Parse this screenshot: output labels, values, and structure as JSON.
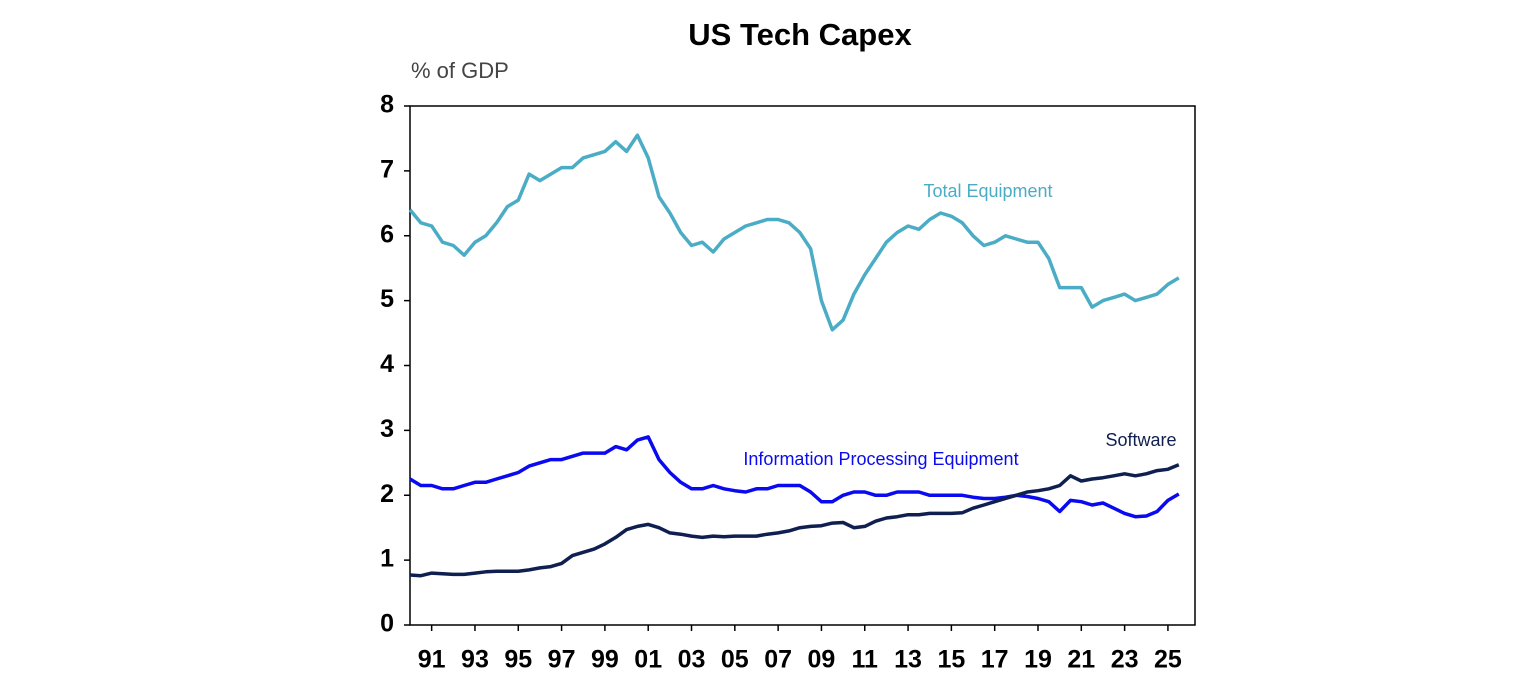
{
  "chart_data": {
    "type": "line",
    "title": "US Tech Capex",
    "y_label": "% of GDP",
    "x": [
      1990,
      1990.5,
      1991,
      1991.5,
      1992,
      1992.5,
      1993,
      1993.5,
      1994,
      1994.5,
      1995,
      1995.5,
      1996,
      1996.5,
      1997,
      1997.5,
      1998,
      1998.5,
      1999,
      1999.5,
      2000,
      2000.5,
      2001,
      2001.5,
      2002,
      2002.5,
      2003,
      2003.5,
      2004,
      2004.5,
      2005,
      2005.5,
      2006,
      2006.5,
      2007,
      2007.5,
      2008,
      2008.5,
      2009,
      2009.5,
      2010,
      2010.5,
      2011,
      2011.5,
      2012,
      2012.5,
      2013,
      2013.5,
      2014,
      2014.5,
      2015,
      2015.5,
      2016,
      2016.5,
      2017,
      2017.5,
      2018,
      2018.5,
      2019,
      2019.5,
      2020,
      2020.5,
      2021,
      2021.5,
      2022,
      2022.5,
      2023,
      2023.5,
      2024,
      2024.5,
      2025,
      2025.5
    ],
    "series": [
      {
        "name": "Total Equipment",
        "color": "#4bacc6",
        "values": [
          6.4,
          6.2,
          6.15,
          5.9,
          5.85,
          5.7,
          5.9,
          6.0,
          6.2,
          6.45,
          6.55,
          6.95,
          6.85,
          6.95,
          7.05,
          7.05,
          7.2,
          7.25,
          7.3,
          7.45,
          7.3,
          7.55,
          7.2,
          6.6,
          6.35,
          6.05,
          5.85,
          5.9,
          5.75,
          5.95,
          6.05,
          6.15,
          6.2,
          6.25,
          6.25,
          6.2,
          6.05,
          5.8,
          5.0,
          4.55,
          4.7,
          5.1,
          5.4,
          5.65,
          5.9,
          6.05,
          6.15,
          6.1,
          6.25,
          6.35,
          6.3,
          6.2,
          6.0,
          5.85,
          5.9,
          6.0,
          5.95,
          5.9,
          5.9,
          5.65,
          5.2,
          5.2,
          5.2,
          4.9,
          5.0,
          5.05,
          5.1,
          5.0,
          5.05,
          5.1,
          5.25,
          5.35
        ]
      },
      {
        "name": "Information Processing Equipment",
        "color": "#0a0af0",
        "values": [
          2.25,
          2.15,
          2.15,
          2.1,
          2.1,
          2.15,
          2.2,
          2.2,
          2.25,
          2.3,
          2.35,
          2.45,
          2.5,
          2.55,
          2.55,
          2.6,
          2.65,
          2.65,
          2.65,
          2.75,
          2.7,
          2.85,
          2.9,
          2.55,
          2.35,
          2.2,
          2.1,
          2.1,
          2.15,
          2.1,
          2.07,
          2.05,
          2.1,
          2.1,
          2.15,
          2.15,
          2.15,
          2.05,
          1.9,
          1.9,
          2.0,
          2.05,
          2.05,
          2.0,
          2.0,
          2.05,
          2.05,
          2.05,
          2.0,
          2.0,
          2.0,
          2.0,
          1.97,
          1.95,
          1.95,
          1.97,
          2.0,
          1.98,
          1.95,
          1.9,
          1.75,
          1.92,
          1.9,
          1.85,
          1.88,
          1.8,
          1.72,
          1.67,
          1.68,
          1.75,
          1.92,
          2.02
        ]
      },
      {
        "name": "Software",
        "color": "#0f2050",
        "values": [
          0.77,
          0.76,
          0.8,
          0.79,
          0.78,
          0.78,
          0.8,
          0.82,
          0.83,
          0.83,
          0.83,
          0.85,
          0.88,
          0.9,
          0.95,
          1.07,
          1.12,
          1.17,
          1.25,
          1.35,
          1.47,
          1.52,
          1.55,
          1.5,
          1.42,
          1.4,
          1.37,
          1.35,
          1.37,
          1.36,
          1.37,
          1.37,
          1.37,
          1.4,
          1.42,
          1.45,
          1.5,
          1.52,
          1.53,
          1.57,
          1.58,
          1.5,
          1.52,
          1.6,
          1.65,
          1.67,
          1.7,
          1.7,
          1.72,
          1.72,
          1.72,
          1.73,
          1.8,
          1.85,
          1.9,
          1.95,
          2.0,
          2.05,
          2.07,
          2.1,
          2.15,
          2.3,
          2.22,
          2.25,
          2.27,
          2.3,
          2.33,
          2.3,
          2.33,
          2.38,
          2.4,
          2.47
        ]
      }
    ],
    "xlim": [
      1990,
      2026.25
    ],
    "xticks": [
      {
        "value": 1991,
        "label": "91"
      },
      {
        "value": 1993,
        "label": "93"
      },
      {
        "value": 1995,
        "label": "95"
      },
      {
        "value": 1997,
        "label": "97"
      },
      {
        "value": 1999,
        "label": "99"
      },
      {
        "value": 2001,
        "label": "01"
      },
      {
        "value": 2003,
        "label": "03"
      },
      {
        "value": 2005,
        "label": "05"
      },
      {
        "value": 2007,
        "label": "07"
      },
      {
        "value": 2009,
        "label": "09"
      },
      {
        "value": 2011,
        "label": "11"
      },
      {
        "value": 2013,
        "label": "13"
      },
      {
        "value": 2015,
        "label": "15"
      },
      {
        "value": 2017,
        "label": "17"
      },
      {
        "value": 2019,
        "label": "19"
      },
      {
        "value": 2021,
        "label": "21"
      },
      {
        "value": 2023,
        "label": "23"
      },
      {
        "value": 2025,
        "label": "25"
      }
    ],
    "ylim": [
      0,
      8
    ],
    "yticks": [
      0,
      1,
      2,
      3,
      4,
      5,
      6,
      7,
      8
    ],
    "grid": false
  }
}
